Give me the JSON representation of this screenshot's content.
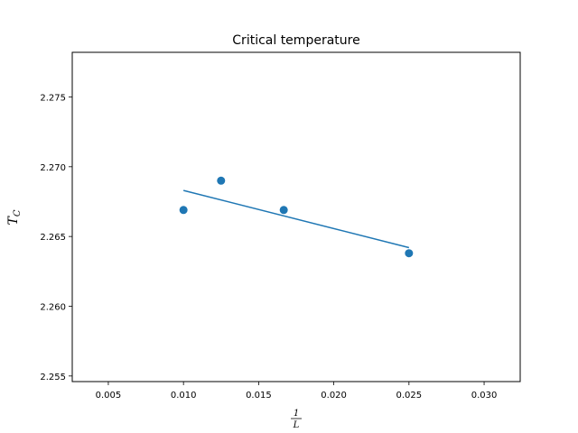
{
  "chart_data": {
    "type": "scatter",
    "title": "Critical temperature",
    "xlabel": {
      "numerator": "1",
      "denominator": "L"
    },
    "ylabel": {
      "symbol": "T",
      "subscript": "C"
    },
    "xlim": [
      0.0026,
      0.0324
    ],
    "ylim": [
      2.2546,
      2.2782
    ],
    "xticks": [
      "0.005",
      "0.010",
      "0.015",
      "0.020",
      "0.025",
      "0.030"
    ],
    "yticks": [
      "2.255",
      "2.260",
      "2.265",
      "2.270",
      "2.275"
    ],
    "series": [
      {
        "kind": "scatter",
        "x": [
          0.01,
          0.0125,
          0.01667,
          0.025
        ],
        "y": [
          2.2669,
          2.269,
          2.2669,
          2.2638
        ]
      },
      {
        "kind": "line",
        "x": [
          0.01,
          0.025
        ],
        "y": [
          2.2683,
          2.2642
        ]
      }
    ],
    "grid": false,
    "colors": {
      "series": "#1f77b4"
    }
  }
}
